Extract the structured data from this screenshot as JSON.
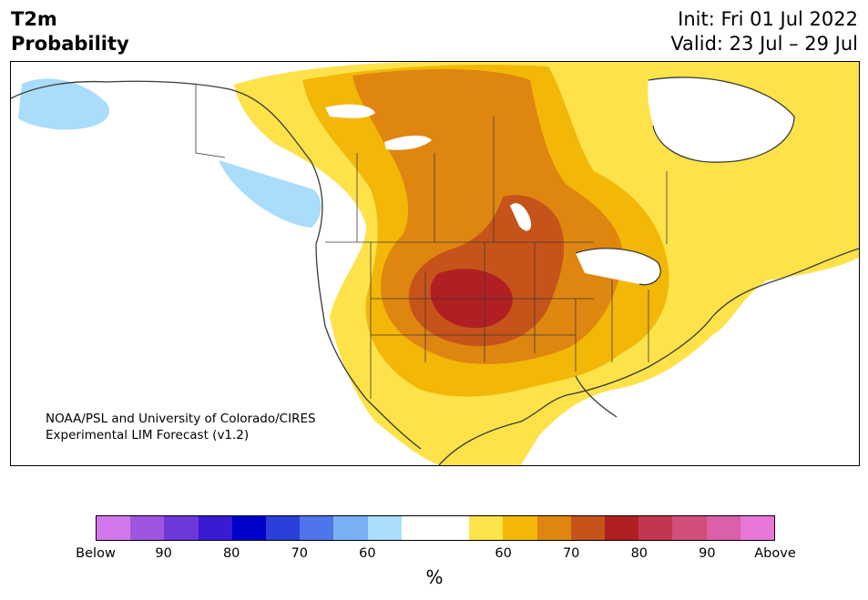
{
  "header": {
    "variable": "T2m",
    "product": "Probability",
    "init": "Init: Fri 01 Jul 2022",
    "valid": "Valid: 23 Jul – 29 Jul"
  },
  "map": {
    "credit_line1": "NOAA/PSL and University of Colorado/CIRES",
    "credit_line2": "Experimental LIM Forecast (v1.2)",
    "region": "North America",
    "colors": {
      "cold_light": "#aadcfb",
      "warm_60": "#fde24a",
      "warm_65": "#f2b707",
      "warm_70": "#df8611",
      "warm_75": "#c6541a",
      "warm_80": "#b11f23",
      "coast": "#3a3a3a"
    }
  },
  "colorbar": {
    "colors": [
      "#d577ec",
      "#9e55e2",
      "#6c38da",
      "#3a1ad2",
      "#0000cc",
      "#2b3fd9",
      "#5074e9",
      "#7ab0f4",
      "#aadcfb",
      "#ffffff",
      "#ffffff",
      "#fde24a",
      "#f2b707",
      "#df8611",
      "#c6541a",
      "#b11f23",
      "#c4364f",
      "#d04d7c",
      "#dc5fa9",
      "#e877d9"
    ],
    "tick_labels": [
      {
        "label": "Below",
        "slot": 0
      },
      {
        "label": "90",
        "slot": 2
      },
      {
        "label": "80",
        "slot": 4
      },
      {
        "label": "70",
        "slot": 6
      },
      {
        "label": "60",
        "slot": 8
      },
      {
        "label": "60",
        "slot": 12
      },
      {
        "label": "70",
        "slot": 14
      },
      {
        "label": "80",
        "slot": 16
      },
      {
        "label": "90",
        "slot": 18
      },
      {
        "label": "Above",
        "slot": 20
      }
    ],
    "unit": "%"
  }
}
